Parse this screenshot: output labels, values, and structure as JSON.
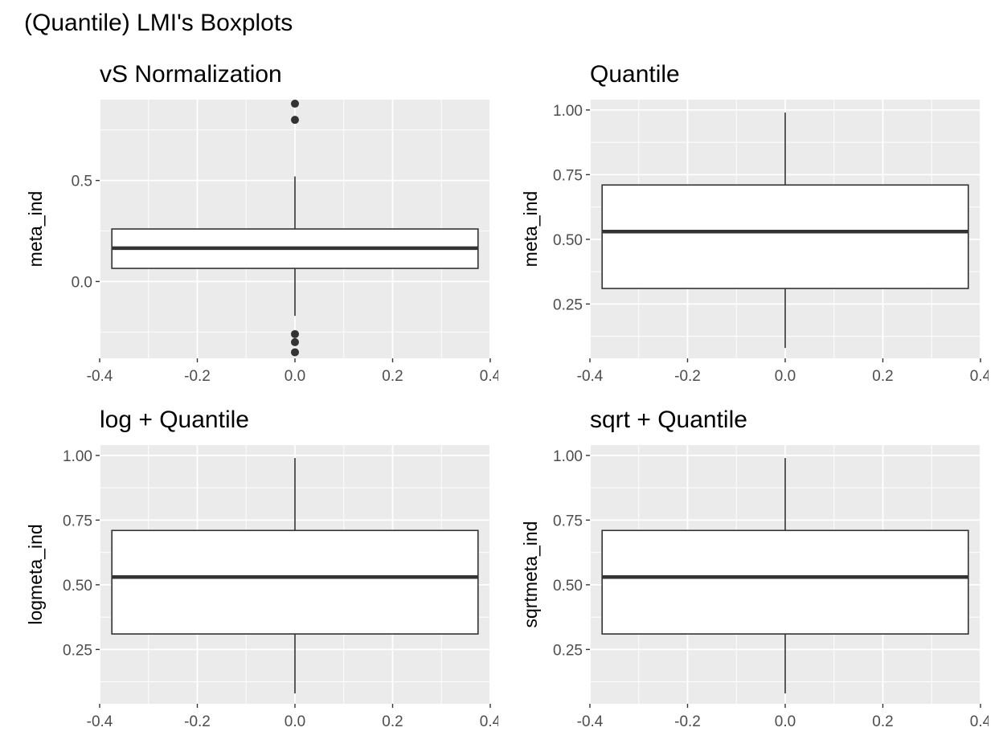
{
  "title": "(Quantile) LMI's Boxplots",
  "chart_data": [
    {
      "type": "boxplot",
      "title": "vS Normalization",
      "xlabel": "",
      "ylabel": "meta_ind",
      "xlim": [
        -0.4,
        0.4
      ],
      "ylim": [
        -0.38,
        0.9
      ],
      "xticks": [
        -0.4,
        -0.2,
        0.0,
        0.2,
        0.4
      ],
      "xtick_labels": [
        "-0.4",
        "-0.2",
        "0.0",
        "0.2",
        "0.4"
      ],
      "yticks": [
        0.0,
        0.5
      ],
      "ytick_labels": [
        "0.0",
        "0.5"
      ],
      "box": {
        "x": 0,
        "width": 0.75,
        "q1": 0.065,
        "median": 0.165,
        "q3": 0.26,
        "whisker_low": -0.17,
        "whisker_high": 0.52
      },
      "outliers": [
        0.88,
        0.8,
        -0.26,
        -0.3,
        -0.35
      ],
      "grid": true
    },
    {
      "type": "boxplot",
      "title": "Quantile",
      "xlabel": "",
      "ylabel": "meta_ind",
      "xlim": [
        -0.4,
        0.4
      ],
      "ylim": [
        0.04,
        1.04
      ],
      "xticks": [
        -0.4,
        -0.2,
        0.0,
        0.2,
        0.4
      ],
      "xtick_labels": [
        "-0.4",
        "-0.2",
        "0.0",
        "0.2",
        "0.4"
      ],
      "yticks": [
        0.25,
        0.5,
        0.75,
        1.0
      ],
      "ytick_labels": [
        "0.25",
        "0.50",
        "0.75",
        "1.00"
      ],
      "box": {
        "x": 0,
        "width": 0.75,
        "q1": 0.31,
        "median": 0.53,
        "q3": 0.71,
        "whisker_low": 0.08,
        "whisker_high": 0.99
      },
      "outliers": [],
      "grid": true
    },
    {
      "type": "boxplot",
      "title": "log + Quantile",
      "xlabel": "",
      "ylabel": "logmeta_ind",
      "xlim": [
        -0.4,
        0.4
      ],
      "ylim": [
        0.04,
        1.04
      ],
      "xticks": [
        -0.4,
        -0.2,
        0.0,
        0.2,
        0.4
      ],
      "xtick_labels": [
        "-0.4",
        "-0.2",
        "0.0",
        "0.2",
        "0.4"
      ],
      "yticks": [
        0.25,
        0.5,
        0.75,
        1.0
      ],
      "ytick_labels": [
        "0.25",
        "0.50",
        "0.75",
        "1.00"
      ],
      "box": {
        "x": 0,
        "width": 0.75,
        "q1": 0.31,
        "median": 0.53,
        "q3": 0.71,
        "whisker_low": 0.08,
        "whisker_high": 0.99
      },
      "outliers": [],
      "grid": true
    },
    {
      "type": "boxplot",
      "title": "sqrt + Quantile",
      "xlabel": "",
      "ylabel": "sqrtmeta_ind",
      "xlim": [
        -0.4,
        0.4
      ],
      "ylim": [
        0.04,
        1.04
      ],
      "xticks": [
        -0.4,
        -0.2,
        0.0,
        0.2,
        0.4
      ],
      "xtick_labels": [
        "-0.4",
        "-0.2",
        "0.0",
        "0.2",
        "0.4"
      ],
      "yticks": [
        0.25,
        0.5,
        0.75,
        1.0
      ],
      "ytick_labels": [
        "0.25",
        "0.50",
        "0.75",
        "1.00"
      ],
      "box": {
        "x": 0,
        "width": 0.75,
        "q1": 0.31,
        "median": 0.53,
        "q3": 0.71,
        "whisker_low": 0.08,
        "whisker_high": 0.99
      },
      "outliers": [],
      "grid": true
    }
  ]
}
